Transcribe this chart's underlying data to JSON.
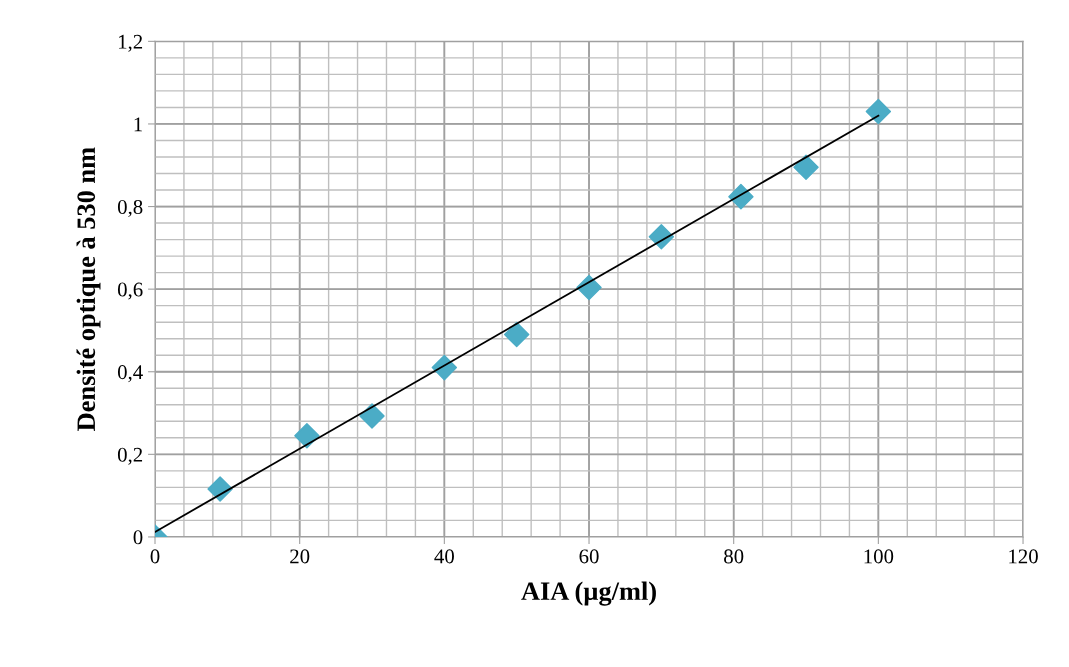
{
  "chart_data": {
    "type": "scatter",
    "xlabel": "AIA (µg/ml)",
    "ylabel": "Densité optique à 530 nm",
    "xlim": [
      0,
      120
    ],
    "xticks": [
      0,
      20,
      40,
      60,
      80,
      100,
      120
    ],
    "ylim": [
      0,
      1.2
    ],
    "yticks": [
      0,
      {
        "value": 0.2,
        "label": "0,2"
      },
      {
        "value": 0.4,
        "label": "0,4"
      },
      {
        "value": 0.6,
        "label": "0,6"
      },
      {
        "value": 0.8,
        "label": "0,8"
      },
      1,
      {
        "value": 1.2,
        "label": "1,2"
      }
    ],
    "grid": true,
    "series": [
      {
        "color": "#4bacc6",
        "marker": "diamond",
        "x": [
          0,
          9,
          21,
          30,
          40,
          50,
          60,
          70,
          81,
          90,
          100
        ],
        "values": [
          0,
          0.116,
          0.245,
          0.293,
          0.41,
          0.49,
          0.604,
          0.727,
          0.824,
          0.895,
          1.03
        ]
      },
      {
        "type": "line",
        "color": "#000000",
        "marker": "none",
        "line_style": "solid",
        "x": [
          0,
          100
        ],
        "values": [
          0.012,
          1.02
        ]
      }
    ]
  }
}
